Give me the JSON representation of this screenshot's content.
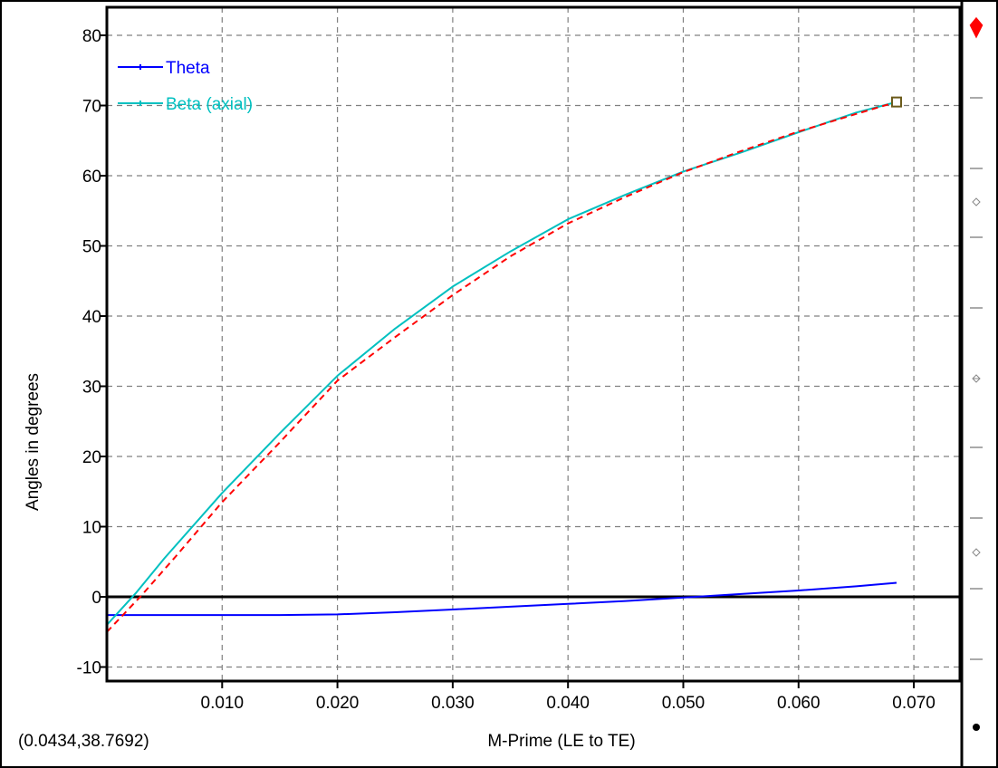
{
  "chart_data": {
    "type": "line",
    "title": "",
    "xlabel": "M-Prime (LE to TE)",
    "ylabel": "Angles in degrees",
    "xlim": [
      0.0,
      0.074
    ],
    "ylim": [
      -12,
      84
    ],
    "x_ticks": [
      0.01,
      0.02,
      0.03,
      0.04,
      0.05,
      0.06,
      0.07
    ],
    "x_tick_labels": [
      "0.010",
      "0.020",
      "0.030",
      "0.040",
      "0.050",
      "0.060",
      "0.070"
    ],
    "y_ticks": [
      -10,
      0,
      10,
      20,
      30,
      40,
      50,
      60,
      70,
      80
    ],
    "y_tick_labels": [
      "-10",
      "0",
      "10",
      "20",
      "30",
      "40",
      "50",
      "60",
      "70",
      "80"
    ],
    "grid": true,
    "legend_position": "top-left",
    "series": [
      {
        "name": "Theta",
        "color": "#0000ff",
        "x": [
          0.0,
          0.002,
          0.005,
          0.01,
          0.015,
          0.02,
          0.025,
          0.03,
          0.035,
          0.04,
          0.045,
          0.05,
          0.055,
          0.06,
          0.065,
          0.0685
        ],
        "y": [
          -2.6,
          -2.6,
          -2.6,
          -2.6,
          -2.6,
          -2.5,
          -2.2,
          -1.8,
          -1.4,
          -1.0,
          -0.6,
          -0.1,
          0.4,
          0.9,
          1.5,
          2.0
        ]
      },
      {
        "name": "Beta (axial)",
        "color": "#00c0c0",
        "x": [
          0.0,
          0.0025,
          0.005,
          0.01,
          0.015,
          0.02,
          0.025,
          0.03,
          0.035,
          0.04,
          0.045,
          0.05,
          0.055,
          0.06,
          0.065,
          0.0685
        ],
        "y": [
          -4.0,
          0.5,
          5.5,
          14.8,
          23.3,
          31.5,
          38.2,
          44.2,
          49.2,
          53.8,
          57.3,
          60.6,
          63.3,
          66.2,
          69.0,
          70.5
        ]
      },
      {
        "name": "",
        "color": "#ff0000",
        "style": "dashed",
        "x": [
          0.0,
          0.003,
          0.006,
          0.01,
          0.015,
          0.02,
          0.025,
          0.03,
          0.035,
          0.04,
          0.045,
          0.05,
          0.055,
          0.06,
          0.065,
          0.0685
        ],
        "y": [
          -5.0,
          0.2,
          5.8,
          13.5,
          22.0,
          30.8,
          37.0,
          43.0,
          48.5,
          53.2,
          57.0,
          60.5,
          63.5,
          66.3,
          68.8,
          70.5
        ]
      }
    ],
    "control_point": {
      "x": 0.0685,
      "y": 70.5
    },
    "coord_readout": "(0.0434,38.7692)"
  }
}
